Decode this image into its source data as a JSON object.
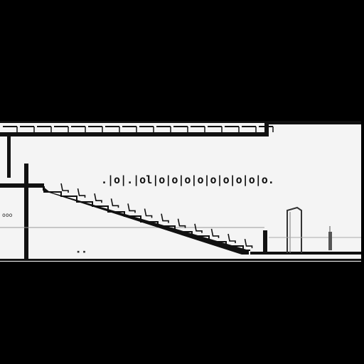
{
  "drawing": {
    "type": "building cross-section",
    "background_color": "#000000",
    "sheet_color": "#f4f4f4",
    "line_color": "#111111",
    "seat_color": "#ffffff",
    "seat_count": 12,
    "wall_glyphs": ".|o|.|ol|o|o|o|o|o|o|o|o|o.",
    "left_fixture_glyphs": "ooo"
  }
}
